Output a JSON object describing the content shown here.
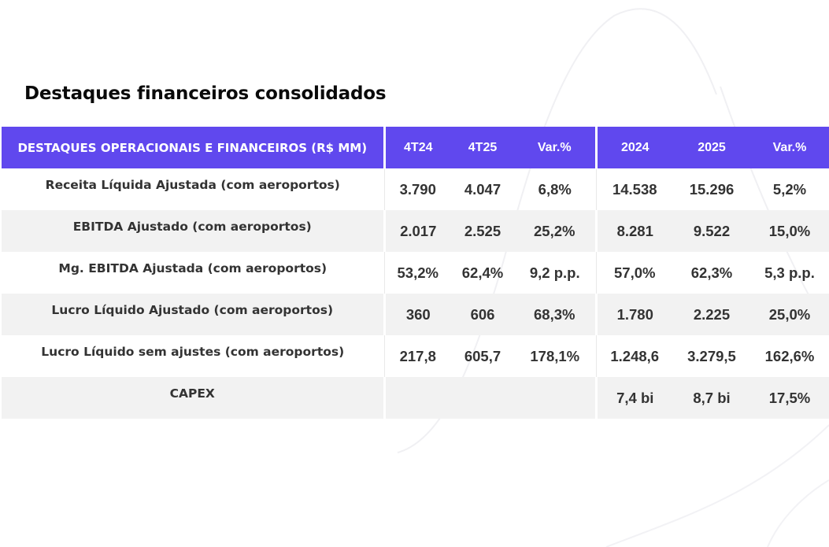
{
  "title": "Destaques financeiros consolidados",
  "table": {
    "headers": [
      "DESTAQUES OPERACIONAIS E FINANCEIROS (R$ MM)",
      "4T24",
      "4T25",
      "Var.%",
      "2024",
      "2025",
      "Var.%"
    ],
    "rows": [
      [
        "Receita Líquida Ajustada (com aeroportos)",
        "3.790",
        "4.047",
        "6,8%",
        "14.538",
        "15.296",
        "5,2%"
      ],
      [
        "EBITDA Ajustado (com aeroportos)",
        "2.017",
        "2.525",
        "25,2%",
        "8.281",
        "9.522",
        "15,0%"
      ],
      [
        "Mg. EBITDA Ajustada (com aeroportos)",
        "53,2%",
        "62,4%",
        "9,2 p.p.",
        "57,0%",
        "62,3%",
        "5,3 p.p."
      ],
      [
        "Lucro Líquido Ajustado (com aeroportos)",
        "360",
        "606",
        "68,3%",
        "1.780",
        "2.225",
        "25,0%"
      ],
      [
        "Lucro Líquido sem ajustes (com aeroportos)",
        "217,8",
        "605,7",
        "178,1%",
        "1.248,6",
        "3.279,5",
        "162,6%"
      ],
      [
        "CAPEX",
        "",
        "",
        "",
        "7,4 bi",
        "8,7 bi",
        "17,5%"
      ]
    ]
  },
  "colors": {
    "header_bg": "#6048ee",
    "header_text": "#ffffff",
    "row_shade": "#f2f2f2",
    "text": "#333333"
  }
}
